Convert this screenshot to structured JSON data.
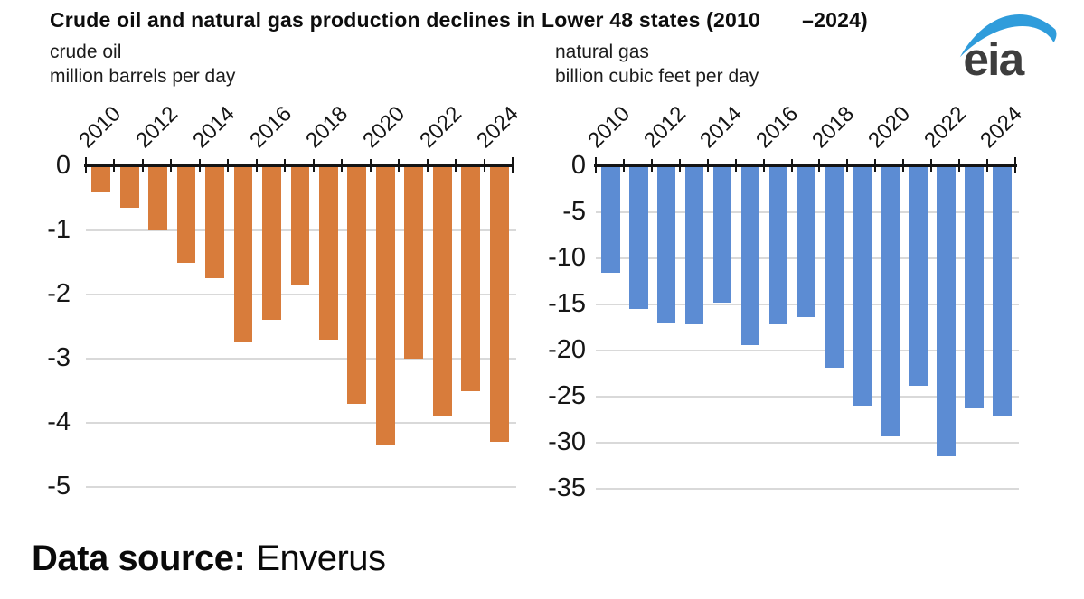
{
  "title": "Crude oil and natural gas production declines in Lower 48 states (2010       –2024)",
  "logo": {
    "text": "eia",
    "swoosh_color": "#2F9CDB",
    "text_color": "#3d3d3d"
  },
  "source": {
    "label": "Data source:",
    "value": "Enverus"
  },
  "chart_data": [
    {
      "type": "bar",
      "name": "crude-oil",
      "subtitle1": "crude oil",
      "subtitle2": "million barrels per day",
      "bar_color": "#D87C3B",
      "categories": [
        "2010",
        "2011",
        "2012",
        "2013",
        "2014",
        "2015",
        "2016",
        "2017",
        "2018",
        "2019",
        "2020",
        "2021",
        "2022",
        "2023",
        "2024"
      ],
      "x_tick_labels": [
        "2010",
        "2012",
        "2014",
        "2016",
        "2018",
        "2020",
        "2022",
        "2024"
      ],
      "values": [
        -0.4,
        -0.65,
        -1.0,
        -1.5,
        -1.75,
        -2.75,
        -2.4,
        -1.85,
        -2.7,
        -3.7,
        -4.35,
        -3.0,
        -3.9,
        -3.5,
        -4.3
      ],
      "y_ticks": [
        0,
        -1,
        -2,
        -3,
        -4,
        -5
      ],
      "ylim": [
        -5,
        0
      ],
      "grid": true,
      "legend": "none"
    },
    {
      "type": "bar",
      "name": "natural-gas",
      "subtitle1": "natural gas",
      "subtitle2": "billion cubic feet per day",
      "bar_color": "#5C8CD3",
      "categories": [
        "2010",
        "2011",
        "2012",
        "2013",
        "2014",
        "2015",
        "2016",
        "2017",
        "2018",
        "2019",
        "2020",
        "2021",
        "2022",
        "2023",
        "2024"
      ],
      "x_tick_labels": [
        "2010",
        "2012",
        "2014",
        "2016",
        "2018",
        "2020",
        "2022",
        "2024"
      ],
      "values": [
        -11.6,
        -15.5,
        -17.1,
        -17.2,
        -14.8,
        -19.4,
        -17.2,
        -16.4,
        -21.9,
        -26.0,
        -29.3,
        -23.8,
        -31.5,
        -26.3,
        -27.1
      ],
      "y_ticks": [
        0,
        -5,
        -10,
        -15,
        -20,
        -25,
        -30,
        -35
      ],
      "ylim": [
        -35,
        0
      ],
      "grid": true,
      "legend": "none"
    }
  ]
}
